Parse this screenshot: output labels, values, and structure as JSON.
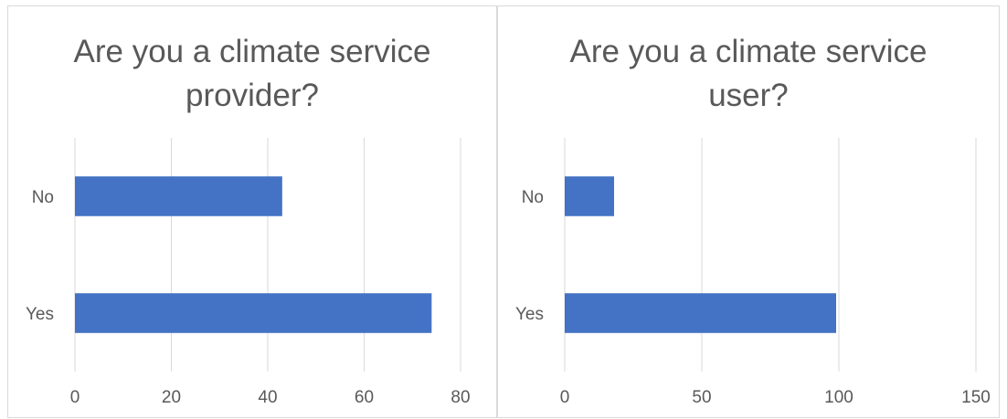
{
  "chart_data": [
    {
      "type": "bar",
      "orientation": "horizontal",
      "title": "Are you a climate service provider?",
      "categories": [
        "No",
        "Yes"
      ],
      "values": [
        43,
        74
      ],
      "xlim": [
        0,
        80
      ],
      "ticks": [
        "0",
        "20",
        "40",
        "60",
        "80"
      ],
      "grid": true,
      "color": "#4472c4"
    },
    {
      "type": "bar",
      "orientation": "horizontal",
      "title": "Are you a climate service user?",
      "categories": [
        "No",
        "Yes"
      ],
      "values": [
        18,
        99
      ],
      "xlim": [
        0,
        150
      ],
      "ticks": [
        "0",
        "50",
        "100",
        "150"
      ],
      "grid": true,
      "color": "#4472c4"
    }
  ]
}
